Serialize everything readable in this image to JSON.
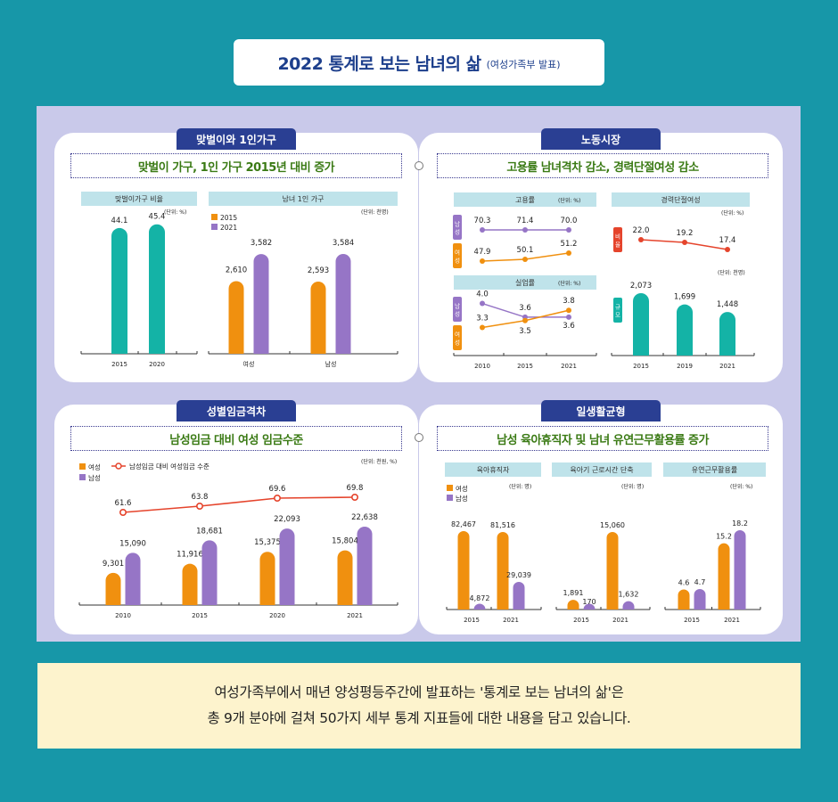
{
  "title": {
    "main": "2022 통계로 보는 남녀의 삶",
    "sub": "(여성가족부 발표)"
  },
  "colors": {
    "background": "#1797a8",
    "panel_bg": "#c9c9ea",
    "tab": "#2a3f93",
    "headline": "#3a7a14",
    "teal": "#14b3a6",
    "orange": "#f0900f",
    "purple": "#9675c6",
    "red": "#e5442c",
    "footer_bg": "#fdf3cd"
  },
  "panels": {
    "dual": {
      "tab": "맞벌이와 1인가구",
      "headline": "맞벌이 가구, 1인 가구 2015년 대비 증가"
    },
    "labor": {
      "tab": "노동시장",
      "headline": "고용률 남녀격차 감소, 경력단절여성 감소"
    },
    "wage": {
      "tab": "성별임금격차",
      "headline": "남성임금 대비 여성 임금수준"
    },
    "balance": {
      "tab": "일생활균형",
      "headline": "남성 육아휴직자 및 남녀 유연근무활용률 증가"
    }
  },
  "chart_data": [
    {
      "id": "dual_income",
      "type": "bar",
      "title": "맞벌이가구 비율",
      "unit": "(단위: %)",
      "categories": [
        "2015",
        "2020"
      ],
      "values": [
        44.1,
        45.4
      ],
      "labels": [
        "44.1",
        "45.4"
      ],
      "ylim": [
        0,
        55
      ]
    },
    {
      "id": "single_household",
      "type": "bar",
      "title": "남녀 1인 가구",
      "unit": "(단위: 천명)",
      "categories": [
        "여성",
        "남성"
      ],
      "series": [
        {
          "name": "2015",
          "values": [
            2610,
            2593
          ],
          "labels": [
            "2,610",
            "2,593"
          ]
        },
        {
          "name": "2021",
          "values": [
            3582,
            3584
          ],
          "labels": [
            "3,582",
            "3,584"
          ]
        }
      ],
      "ylim": [
        0,
        4300
      ]
    },
    {
      "id": "employment",
      "type": "line",
      "title": "고용률",
      "unit": "(단위: %)",
      "categories": [
        "2010",
        "2015",
        "2021"
      ],
      "series": [
        {
          "name": "남성",
          "values": [
            70.3,
            71.4,
            70.0
          ],
          "labels": [
            "70.3",
            "71.4",
            "70.0"
          ]
        },
        {
          "name": "여성",
          "values": [
            47.9,
            50.1,
            51.2
          ],
          "labels": [
            "47.9",
            "50.1",
            "51.2"
          ]
        }
      ]
    },
    {
      "id": "unemployment",
      "type": "line",
      "title": "실업률",
      "unit": "(단위: %)",
      "categories": [
        "2010",
        "2015",
        "2021"
      ],
      "xlabels": [
        "2010",
        "2015",
        "2021"
      ],
      "series": [
        {
          "name": "남성",
          "values": [
            4.0,
            3.6,
            3.6
          ],
          "labels": [
            "4.0",
            "3.6",
            "3.6"
          ]
        },
        {
          "name": "여성",
          "values": [
            3.3,
            3.5,
            3.8
          ],
          "labels": [
            "3.3",
            "3.5",
            "3.8"
          ]
        }
      ],
      "ylim": [
        3.0,
        4.3
      ]
    },
    {
      "id": "career_break",
      "type": "bar",
      "title": "경력단절여성",
      "unit_rate": "(단위: %)",
      "unit_count": "(단위: 천명)",
      "categories": [
        "2015",
        "2019",
        "2021"
      ],
      "rate_name": "비율",
      "count_name": "규모",
      "rate": [
        22.0,
        19.2,
        17.4
      ],
      "rate_labels": [
        "22.0",
        "19.2",
        "17.4"
      ],
      "values": [
        2073,
        1699,
        1448
      ],
      "labels": [
        "2,073",
        "1,699",
        "1,448"
      ],
      "ylim": [
        0,
        2600
      ]
    },
    {
      "id": "wage_gap",
      "type": "bar",
      "unit": "(단위: 천원, %)",
      "categories": [
        "2010",
        "2015",
        "2020",
        "2021"
      ],
      "series": [
        {
          "name": "여성",
          "values": [
            9301,
            11916,
            15375,
            15804
          ],
          "labels": [
            "9,301",
            "11,916",
            "15,375",
            "15,804"
          ]
        },
        {
          "name": "남성",
          "values": [
            15090,
            18681,
            22093,
            22638
          ],
          "labels": [
            "15,090",
            "18,681",
            "22,093",
            "22,638"
          ]
        }
      ],
      "line": {
        "name": "남성임금 대비 여성임금 수준",
        "values": [
          61.6,
          63.8,
          69.6,
          69.8
        ],
        "labels": [
          "61.6",
          "63.8",
          "69.6",
          "69.8"
        ]
      },
      "ylim": [
        0,
        25000
      ]
    },
    {
      "id": "parental_leave",
      "type": "bar",
      "title": "육아휴직자",
      "unit": "(단위: 명)",
      "categories": [
        "2015",
        "2021"
      ],
      "series": [
        {
          "name": "여성",
          "values": [
            82467,
            81516
          ],
          "labels": [
            "82,467",
            "81,516"
          ]
        },
        {
          "name": "남성",
          "values": [
            4872,
            29039
          ],
          "labels": [
            "4,872",
            "29,039"
          ]
        }
      ],
      "ylim": [
        0,
        90000
      ]
    },
    {
      "id": "reduced_hours",
      "type": "bar",
      "title": "육아기 근로시간 단축",
      "unit": "(단위: 명)",
      "categories": [
        "2015",
        "2021"
      ],
      "series": [
        {
          "name": "여성",
          "values": [
            1891,
            15060
          ],
          "labels": [
            "1,891",
            "15,060"
          ]
        },
        {
          "name": "남성",
          "values": [
            170,
            1632
          ],
          "labels": [
            "170",
            "1,632"
          ]
        }
      ],
      "ylim": [
        0,
        18500
      ]
    },
    {
      "id": "flexible_work",
      "type": "bar",
      "title": "유연근무활용률",
      "unit": "(단위: %)",
      "categories": [
        "2015",
        "2021"
      ],
      "series": [
        {
          "name": "여성",
          "values": [
            4.6,
            15.2
          ],
          "labels": [
            "4.6",
            "15.2"
          ]
        },
        {
          "name": "남성",
          "values": [
            4.7,
            18.2
          ],
          "labels": [
            "4.7",
            "18.2"
          ]
        }
      ],
      "ylim": [
        0,
        22
      ]
    }
  ],
  "footer": {
    "line1": "여성가족부에서 매년 양성평등주간에 발표하는 '통계로 보는 남녀의 삶'은",
    "line2": "총 9개 분야에 걸쳐 50가지 세부 통계 지표들에 대한 내용을 담고 있습니다."
  }
}
